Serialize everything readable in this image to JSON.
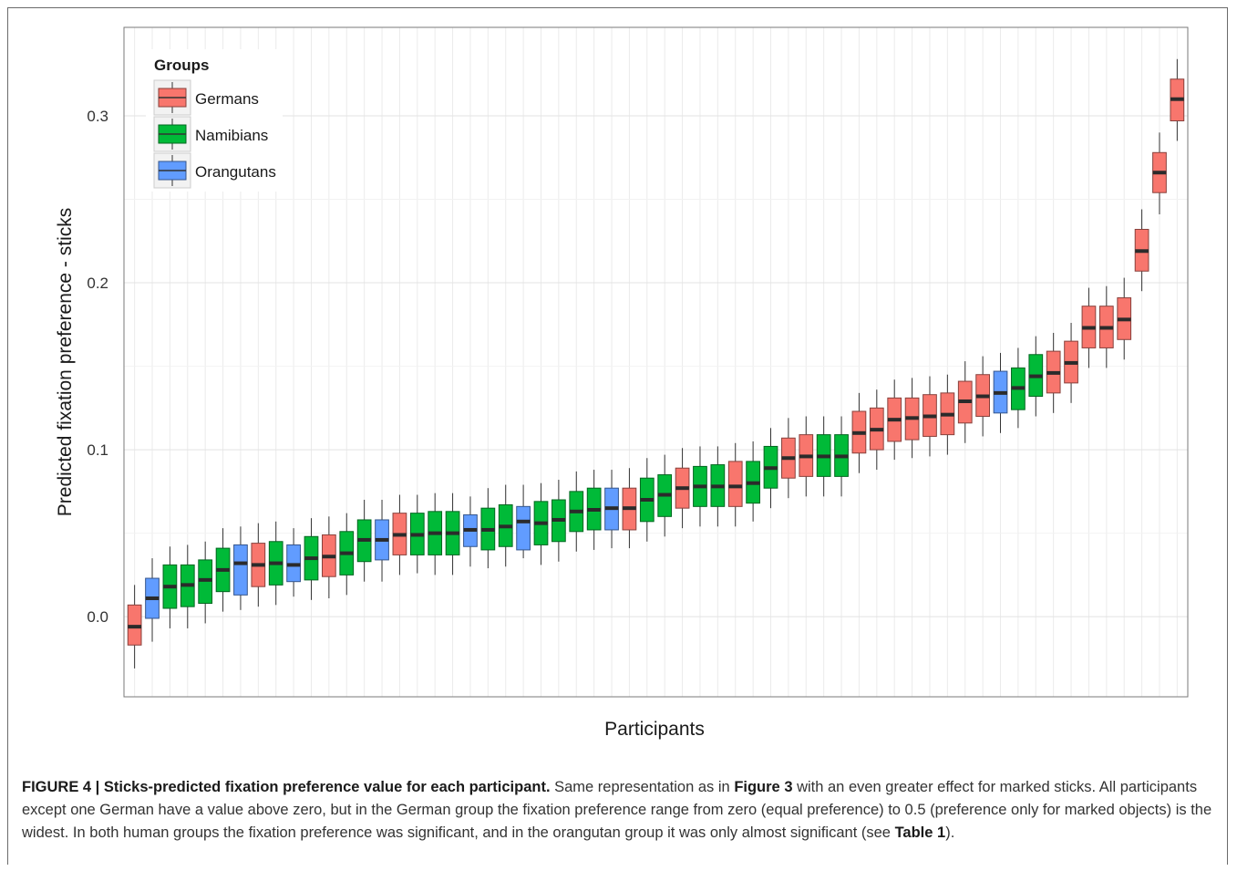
{
  "chart_data": {
    "type": "boxplot",
    "xlabel": "Participants",
    "ylabel": "Predicted fixation preference - sticks",
    "y_ticks": [
      "0.0",
      "0.1",
      "0.2",
      "0.3"
    ],
    "ylim": [
      -0.048,
      0.353
    ],
    "grid": true,
    "legend": {
      "title": "Groups",
      "placement": "top-left",
      "entries": [
        {
          "name": "Germans",
          "color": "#f8766d"
        },
        {
          "name": "Namibians",
          "color": "#00ba38"
        },
        {
          "name": "Orangutans",
          "color": "#619cff"
        }
      ]
    },
    "colors": {
      "G": "#f8766d",
      "N": "#00ba38",
      "O": "#619cff"
    },
    "boxes": [
      {
        "group": "G",
        "min": -0.031,
        "q1": -0.017,
        "median": -0.006,
        "q3": 0.007,
        "max": 0.019
      },
      {
        "group": "O",
        "min": -0.015,
        "q1": -0.001,
        "median": 0.011,
        "q3": 0.023,
        "max": 0.035
      },
      {
        "group": "N",
        "min": -0.007,
        "q1": 0.005,
        "median": 0.018,
        "q3": 0.031,
        "max": 0.042
      },
      {
        "group": "N",
        "min": -0.007,
        "q1": 0.006,
        "median": 0.019,
        "q3": 0.031,
        "max": 0.043
      },
      {
        "group": "N",
        "min": -0.004,
        "q1": 0.008,
        "median": 0.022,
        "q3": 0.034,
        "max": 0.045
      },
      {
        "group": "N",
        "min": 0.003,
        "q1": 0.015,
        "median": 0.028,
        "q3": 0.041,
        "max": 0.053
      },
      {
        "group": "O",
        "min": 0.004,
        "q1": 0.013,
        "median": 0.032,
        "q3": 0.043,
        "max": 0.054
      },
      {
        "group": "G",
        "min": 0.006,
        "q1": 0.018,
        "median": 0.031,
        "q3": 0.044,
        "max": 0.056
      },
      {
        "group": "N",
        "min": 0.007,
        "q1": 0.019,
        "median": 0.032,
        "q3": 0.045,
        "max": 0.057
      },
      {
        "group": "O",
        "min": 0.012,
        "q1": 0.021,
        "median": 0.031,
        "q3": 0.043,
        "max": 0.053
      },
      {
        "group": "N",
        "min": 0.01,
        "q1": 0.022,
        "median": 0.035,
        "q3": 0.048,
        "max": 0.059
      },
      {
        "group": "G",
        "min": 0.011,
        "q1": 0.024,
        "median": 0.036,
        "q3": 0.049,
        "max": 0.06
      },
      {
        "group": "N",
        "min": 0.013,
        "q1": 0.025,
        "median": 0.038,
        "q3": 0.051,
        "max": 0.062
      },
      {
        "group": "N",
        "min": 0.021,
        "q1": 0.033,
        "median": 0.046,
        "q3": 0.058,
        "max": 0.07
      },
      {
        "group": "O",
        "min": 0.021,
        "q1": 0.034,
        "median": 0.046,
        "q3": 0.058,
        "max": 0.07
      },
      {
        "group": "G",
        "min": 0.025,
        "q1": 0.037,
        "median": 0.049,
        "q3": 0.062,
        "max": 0.073
      },
      {
        "group": "N",
        "min": 0.026,
        "q1": 0.037,
        "median": 0.049,
        "q3": 0.062,
        "max": 0.073
      },
      {
        "group": "N",
        "min": 0.025,
        "q1": 0.037,
        "median": 0.05,
        "q3": 0.063,
        "max": 0.074
      },
      {
        "group": "N",
        "min": 0.025,
        "q1": 0.037,
        "median": 0.05,
        "q3": 0.063,
        "max": 0.074
      },
      {
        "group": "O",
        "min": 0.03,
        "q1": 0.042,
        "median": 0.052,
        "q3": 0.061,
        "max": 0.072
      },
      {
        "group": "N",
        "min": 0.029,
        "q1": 0.04,
        "median": 0.052,
        "q3": 0.065,
        "max": 0.077
      },
      {
        "group": "N",
        "min": 0.03,
        "q1": 0.042,
        "median": 0.054,
        "q3": 0.067,
        "max": 0.079
      },
      {
        "group": "O",
        "min": 0.035,
        "q1": 0.04,
        "median": 0.057,
        "q3": 0.066,
        "max": 0.079
      },
      {
        "group": "N",
        "min": 0.031,
        "q1": 0.043,
        "median": 0.056,
        "q3": 0.069,
        "max": 0.08
      },
      {
        "group": "N",
        "min": 0.033,
        "q1": 0.045,
        "median": 0.058,
        "q3": 0.07,
        "max": 0.082
      },
      {
        "group": "N",
        "min": 0.039,
        "q1": 0.051,
        "median": 0.063,
        "q3": 0.075,
        "max": 0.087
      },
      {
        "group": "N",
        "min": 0.04,
        "q1": 0.052,
        "median": 0.064,
        "q3": 0.077,
        "max": 0.088
      },
      {
        "group": "O",
        "min": 0.041,
        "q1": 0.052,
        "median": 0.065,
        "q3": 0.077,
        "max": 0.088
      },
      {
        "group": "G",
        "min": 0.041,
        "q1": 0.052,
        "median": 0.065,
        "q3": 0.077,
        "max": 0.089
      },
      {
        "group": "N",
        "min": 0.045,
        "q1": 0.057,
        "median": 0.07,
        "q3": 0.083,
        "max": 0.095
      },
      {
        "group": "N",
        "min": 0.048,
        "q1": 0.06,
        "median": 0.073,
        "q3": 0.085,
        "max": 0.097
      },
      {
        "group": "G",
        "min": 0.053,
        "q1": 0.065,
        "median": 0.077,
        "q3": 0.089,
        "max": 0.101
      },
      {
        "group": "N",
        "min": 0.054,
        "q1": 0.066,
        "median": 0.078,
        "q3": 0.09,
        "max": 0.102
      },
      {
        "group": "N",
        "min": 0.054,
        "q1": 0.066,
        "median": 0.078,
        "q3": 0.091,
        "max": 0.102
      },
      {
        "group": "G",
        "min": 0.054,
        "q1": 0.066,
        "median": 0.078,
        "q3": 0.093,
        "max": 0.104
      },
      {
        "group": "N",
        "min": 0.057,
        "q1": 0.068,
        "median": 0.08,
        "q3": 0.093,
        "max": 0.105
      },
      {
        "group": "N",
        "min": 0.065,
        "q1": 0.077,
        "median": 0.089,
        "q3": 0.102,
        "max": 0.113
      },
      {
        "group": "G",
        "min": 0.071,
        "q1": 0.083,
        "median": 0.095,
        "q3": 0.107,
        "max": 0.119
      },
      {
        "group": "G",
        "min": 0.072,
        "q1": 0.084,
        "median": 0.096,
        "q3": 0.109,
        "max": 0.12
      },
      {
        "group": "N",
        "min": 0.072,
        "q1": 0.084,
        "median": 0.096,
        "q3": 0.109,
        "max": 0.12
      },
      {
        "group": "N",
        "min": 0.072,
        "q1": 0.084,
        "median": 0.096,
        "q3": 0.109,
        "max": 0.12
      },
      {
        "group": "G",
        "min": 0.086,
        "q1": 0.098,
        "median": 0.11,
        "q3": 0.123,
        "max": 0.134
      },
      {
        "group": "G",
        "min": 0.088,
        "q1": 0.1,
        "median": 0.112,
        "q3": 0.125,
        "max": 0.136
      },
      {
        "group": "G",
        "min": 0.094,
        "q1": 0.105,
        "median": 0.118,
        "q3": 0.131,
        "max": 0.142
      },
      {
        "group": "G",
        "min": 0.095,
        "q1": 0.106,
        "median": 0.119,
        "q3": 0.131,
        "max": 0.143
      },
      {
        "group": "G",
        "min": 0.096,
        "q1": 0.108,
        "median": 0.12,
        "q3": 0.133,
        "max": 0.144
      },
      {
        "group": "G",
        "min": 0.097,
        "q1": 0.109,
        "median": 0.121,
        "q3": 0.134,
        "max": 0.145
      },
      {
        "group": "G",
        "min": 0.104,
        "q1": 0.116,
        "median": 0.129,
        "q3": 0.141,
        "max": 0.153
      },
      {
        "group": "G",
        "min": 0.108,
        "q1": 0.12,
        "median": 0.132,
        "q3": 0.145,
        "max": 0.156
      },
      {
        "group": "O",
        "min": 0.11,
        "q1": 0.122,
        "median": 0.134,
        "q3": 0.147,
        "max": 0.158
      },
      {
        "group": "N",
        "min": 0.113,
        "q1": 0.124,
        "median": 0.137,
        "q3": 0.149,
        "max": 0.161
      },
      {
        "group": "N",
        "min": 0.12,
        "q1": 0.132,
        "median": 0.144,
        "q3": 0.157,
        "max": 0.168
      },
      {
        "group": "G",
        "min": 0.122,
        "q1": 0.134,
        "median": 0.146,
        "q3": 0.159,
        "max": 0.17
      },
      {
        "group": "G",
        "min": 0.128,
        "q1": 0.14,
        "median": 0.152,
        "q3": 0.165,
        "max": 0.176
      },
      {
        "group": "G",
        "min": 0.149,
        "q1": 0.161,
        "median": 0.173,
        "q3": 0.186,
        "max": 0.197
      },
      {
        "group": "G",
        "min": 0.149,
        "q1": 0.161,
        "median": 0.173,
        "q3": 0.186,
        "max": 0.198
      },
      {
        "group": "G",
        "min": 0.154,
        "q1": 0.166,
        "median": 0.178,
        "q3": 0.191,
        "max": 0.203
      },
      {
        "group": "G",
        "min": 0.195,
        "q1": 0.207,
        "median": 0.219,
        "q3": 0.232,
        "max": 0.244
      },
      {
        "group": "G",
        "min": 0.241,
        "q1": 0.254,
        "median": 0.266,
        "q3": 0.278,
        "max": 0.29
      },
      {
        "group": "G",
        "min": 0.285,
        "q1": 0.297,
        "median": 0.31,
        "q3": 0.322,
        "max": 0.334
      }
    ]
  },
  "caption": {
    "label": "FIGURE 4 | Sticks-predicted fixation preference value for each participant.",
    "text1": " Same representation as in ",
    "ref1": "Figure 3",
    "text2": " with an even greater effect for marked sticks. All participants except one German have a value above zero, but in the German group the fixation preference range from zero (equal preference) to 0.5 (preference only for marked objects) is the widest. In both human groups the fixation preference was significant, and in the orangutan group it was only almost significant (see ",
    "ref2": "Table 1",
    "text3": ")."
  }
}
